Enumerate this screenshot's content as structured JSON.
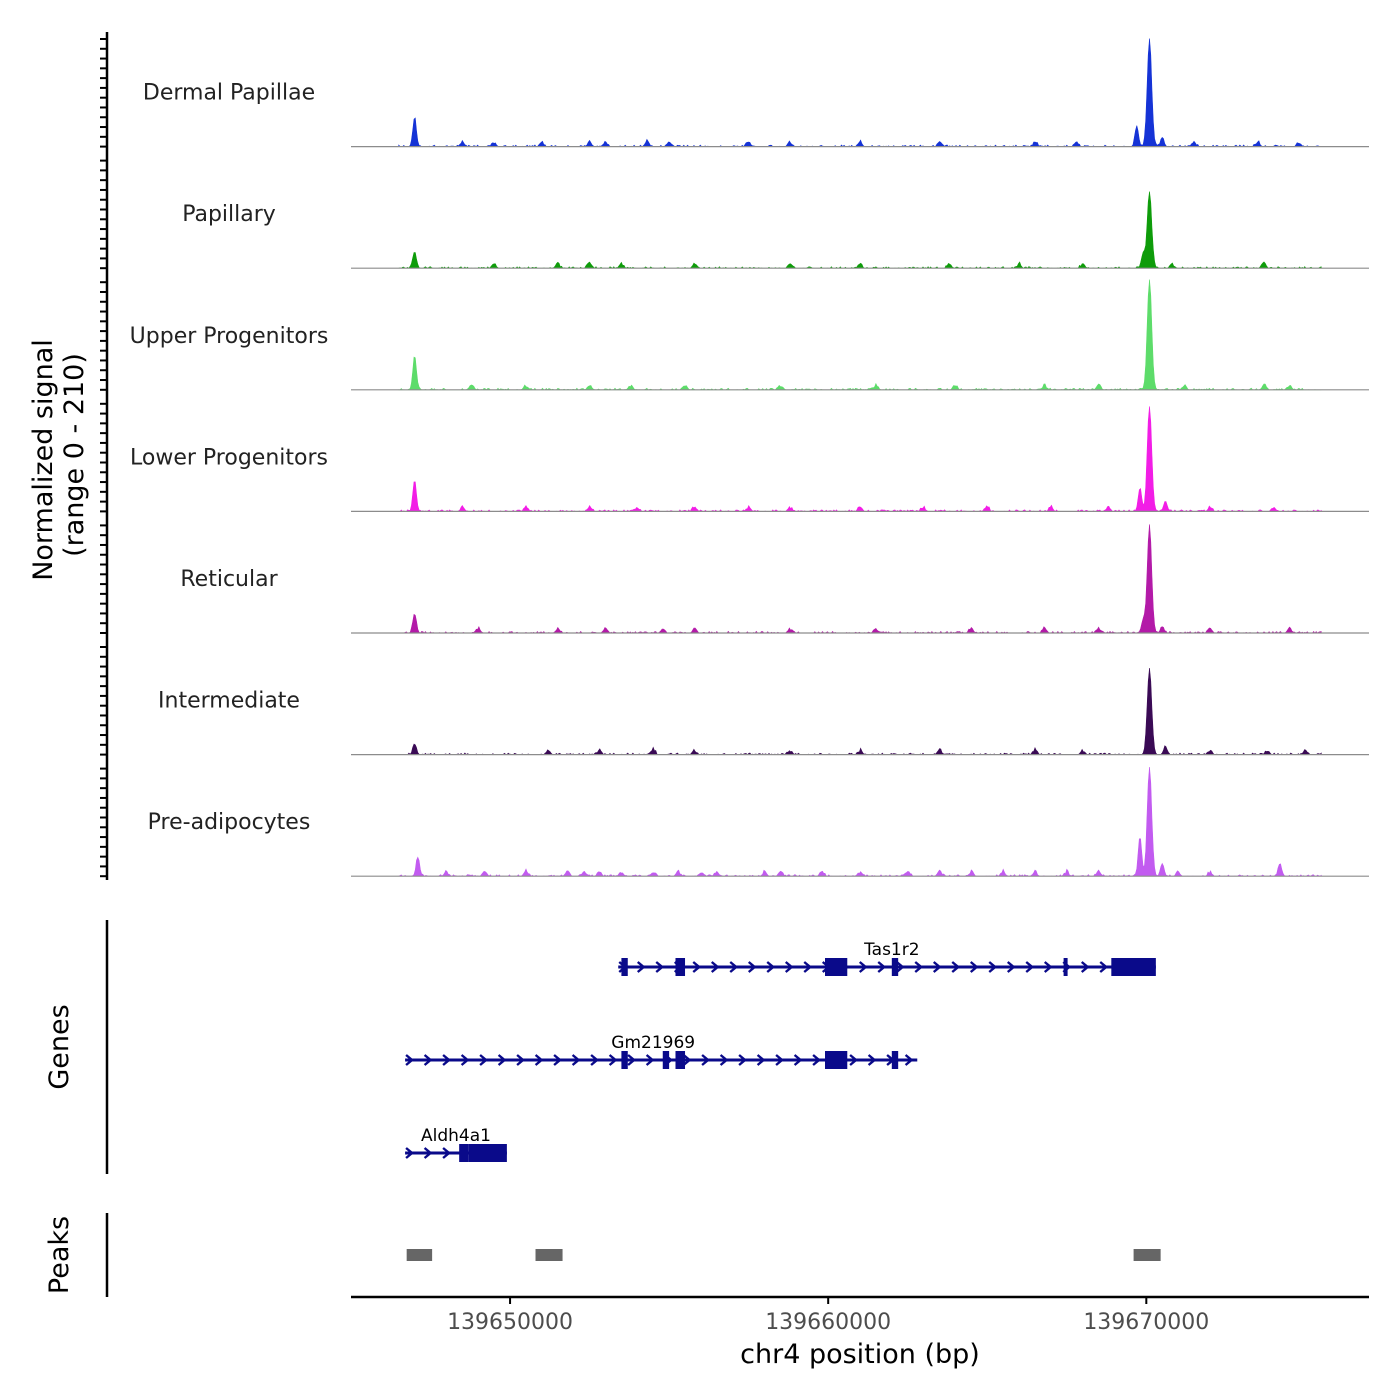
{
  "chart_data": {
    "type": "coverage",
    "y_axis_title": "Normalized signal",
    "y_axis_range_label": "(range 0 - 210)",
    "ylim": [
      0,
      210
    ],
    "x_axis_title": "chr4 position (bp)",
    "xlim": [
      139645000,
      139677000
    ],
    "x_ticks": [
      139650000,
      139660000,
      139670000
    ],
    "x_tick_labels": [
      "139650000",
      "139660000",
      "139670000"
    ],
    "data_start": 139646500,
    "data_end": 139675500,
    "tracks": [
      {
        "name": "Dermal Papillae",
        "color": "#1533d6",
        "peaks": [
          {
            "pos": 139647000,
            "h": 28
          },
          {
            "pos": 139669700,
            "h": 20
          },
          {
            "pos": 139670100,
            "h": 102
          },
          {
            "pos": 139670500,
            "h": 8
          }
        ],
        "bumps": [
          139648500,
          139649500,
          139651000,
          139652500,
          139653000,
          139654300,
          139655000,
          139657500,
          139658800,
          139661000,
          139663500,
          139666500,
          139667800,
          139671500,
          139673500,
          139674800
        ]
      },
      {
        "name": "Papillary",
        "color": "#0e9c0a",
        "peaks": [
          {
            "pos": 139647000,
            "h": 16
          },
          {
            "pos": 139669900,
            "h": 14
          },
          {
            "pos": 139670100,
            "h": 73
          },
          {
            "pos": 139673700,
            "h": 6
          }
        ],
        "bumps": [
          139649500,
          139651500,
          139652500,
          139653500,
          139655800,
          139658800,
          139661000,
          139663800,
          139666000,
          139668000,
          139670800
        ]
      },
      {
        "name": "Upper Progenitors",
        "color": "#5ddc6a",
        "peaks": [
          {
            "pos": 139647000,
            "h": 32
          },
          {
            "pos": 139670100,
            "h": 105
          },
          {
            "pos": 139673700,
            "h": 5
          }
        ],
        "bumps": [
          139648800,
          139650500,
          139652500,
          139653800,
          139655500,
          139658500,
          139661500,
          139664000,
          139666800,
          139668500,
          139671200,
          139674500
        ]
      },
      {
        "name": "Lower Progenitors",
        "color": "#f21de6",
        "peaks": [
          {
            "pos": 139647000,
            "h": 30
          },
          {
            "pos": 139669800,
            "h": 22
          },
          {
            "pos": 139670100,
            "h": 100
          },
          {
            "pos": 139670600,
            "h": 10
          }
        ],
        "bumps": [
          139648500,
          139650500,
          139652500,
          139654000,
          139655800,
          139657500,
          139658800,
          139661000,
          139663000,
          139665000,
          139667000,
          139668800,
          139672000,
          139674000
        ]
      },
      {
        "name": "Reticular",
        "color": "#b31aa8",
        "peaks": [
          {
            "pos": 139647000,
            "h": 18
          },
          {
            "pos": 139669900,
            "h": 12
          },
          {
            "pos": 139670100,
            "h": 102
          },
          {
            "pos": 139670500,
            "h": 6
          }
        ],
        "bumps": [
          139649000,
          139651500,
          139653000,
          139654800,
          139655800,
          139658800,
          139661500,
          139664500,
          139666800,
          139668500,
          139672000,
          139674500
        ]
      },
      {
        "name": "Intermediate",
        "color": "#3a0a55",
        "peaks": [
          {
            "pos": 139647000,
            "h": 10
          },
          {
            "pos": 139670100,
            "h": 82
          },
          {
            "pos": 139670600,
            "h": 8
          }
        ],
        "bumps": [
          139651200,
          139652800,
          139654500,
          139655800,
          139658800,
          139661000,
          139663500,
          139666500,
          139668000,
          139672000,
          139673800,
          139675000
        ]
      },
      {
        "name": "Pre-adipocytes",
        "color": "#c25bf0",
        "peaks": [
          {
            "pos": 139647100,
            "h": 18
          },
          {
            "pos": 139669800,
            "h": 38
          },
          {
            "pos": 139670100,
            "h": 104
          },
          {
            "pos": 139670500,
            "h": 12
          },
          {
            "pos": 139674200,
            "h": 12
          }
        ],
        "bumps": [
          139648000,
          139649200,
          139650500,
          139651800,
          139652300,
          139652800,
          139653500,
          139654500,
          139655300,
          139656000,
          139656500,
          139658000,
          139658500,
          139659800,
          139661000,
          139662500,
          139663500,
          139664500,
          139665500,
          139666500,
          139667500,
          139668500,
          139671000,
          139672000
        ]
      }
    ],
    "genes_axis_title": "Genes",
    "genes": [
      {
        "name": "Aldh4a1",
        "start": 139646700,
        "end": 139649900,
        "strand": "+",
        "exons": [
          [
            139648400,
            139648700
          ],
          [
            139648700,
            139649900
          ]
        ]
      },
      {
        "name": "Gm21969",
        "start": 139646700,
        "end": 139662800,
        "strand": "+",
        "exons": [
          [
            139653500,
            139653700
          ],
          [
            139654800,
            139655000
          ],
          [
            139655200,
            139655500
          ],
          [
            139659900,
            139660600
          ],
          [
            139662000,
            139662200
          ]
        ]
      },
      {
        "name": "Tas1r2",
        "start": 139653400,
        "end": 139670300,
        "strand": "+",
        "exons": [
          [
            139653500,
            139653700
          ],
          [
            139655200,
            139655500
          ],
          [
            139659900,
            139660600
          ],
          [
            139662000,
            139662200
          ],
          [
            139667400,
            139667500
          ],
          [
            139668900,
            139670300
          ]
        ]
      }
    ],
    "peaks_axis_title": "Peaks",
    "peaks_track": [
      [
        139646750,
        139647550
      ],
      [
        139650800,
        139651650
      ],
      [
        139669600,
        139670450
      ]
    ]
  }
}
